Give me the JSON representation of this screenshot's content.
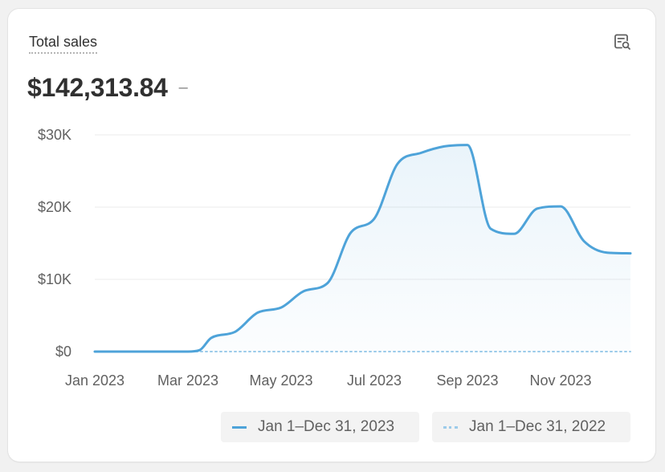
{
  "card": {
    "title": "Total sales",
    "icon": "report-search-icon",
    "metric_value": "$142,313.84",
    "metric_change": "–"
  },
  "legend": [
    {
      "label": "Jan 1–Dec 31, 2023",
      "style": "solid",
      "color": "#4ea3d9"
    },
    {
      "label": "Jan 1–Dec 31, 2022",
      "style": "dotted",
      "color": "#9ccbea"
    }
  ],
  "chart_data": {
    "type": "area",
    "title": "Total sales",
    "x_tick_labels": [
      "Jan 2023",
      "Mar 2023",
      "May 2023",
      "Jul 2023",
      "Sep 2023",
      "Nov 2023"
    ],
    "y_tick_labels": [
      "$0",
      "$10K",
      "$20K",
      "$30K"
    ],
    "ylim": [
      0,
      30000
    ],
    "xlim": [
      0,
      11.5
    ],
    "grid": true,
    "legend_position": "bottom-right",
    "colors": {
      "current": "#4ea3d9",
      "previous": "#9ccbea",
      "grid": "#ebebeb"
    },
    "series": [
      {
        "name": "Jan 1–Dec 31, 2023",
        "style": "solid",
        "x": [
          0,
          0.5,
          1,
          1.5,
          2,
          2.25,
          2.5,
          3,
          3.5,
          4,
          4.5,
          5,
          5.5,
          6,
          6.5,
          7,
          7.5,
          8,
          8.5,
          9,
          9.5,
          10,
          10.5,
          11,
          11.5
        ],
        "y": [
          0,
          0,
          0,
          0,
          0,
          200,
          1900,
          2700,
          5400,
          6100,
          8400,
          9500,
          16500,
          18400,
          26000,
          27500,
          28400,
          28600,
          17000,
          16300,
          19800,
          20100,
          15300,
          13700,
          13600
        ]
      },
      {
        "name": "Jan 1–Dec 31, 2022",
        "style": "dotted",
        "x": [
          0,
          2.25,
          11.5
        ],
        "y": [
          0,
          0,
          0
        ]
      }
    ]
  }
}
